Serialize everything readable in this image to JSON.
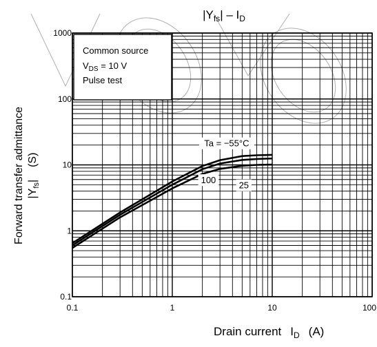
{
  "chart_data": {
    "type": "line",
    "title_parts": {
      "bar_left": "|",
      "y": "Y",
      "y_sub": "fs",
      "bar_right": "|",
      "dash": " – I",
      "i_sub": "D"
    },
    "xlabel_parts": {
      "text": "Drain current",
      "i": "I",
      "i_sub": "D",
      "unit": "(A)"
    },
    "ylabel_parts": {
      "line1": "Forward transfer admittance",
      "y": "Y",
      "y_sub": "fs",
      "unit": "(S)"
    },
    "x_scale": "log",
    "y_scale": "log",
    "xlim": [
      0.1,
      100
    ],
    "ylim": [
      0.1,
      1000
    ],
    "x_ticks": [
      {
        "value": 0.1,
        "label": "0.1"
      },
      {
        "value": 1,
        "label": "1"
      },
      {
        "value": 10,
        "label": "10"
      },
      {
        "value": 100,
        "label": "100"
      }
    ],
    "y_ticks": [
      {
        "value": 0.1,
        "label": "0.1"
      },
      {
        "value": 1,
        "label": "1"
      },
      {
        "value": 10,
        "label": "10"
      },
      {
        "value": 100,
        "label": "100"
      },
      {
        "value": 1000,
        "label": "1000"
      }
    ],
    "grid": true,
    "conditions": {
      "line1": "Common source",
      "line2_v": "V",
      "line2_sub": "DS",
      "line2_rest": " = 10 V",
      "line3": "Pulse test"
    },
    "series": [
      {
        "name": "Ta = −55°C",
        "x": [
          0.1,
          0.3,
          1,
          2,
          3,
          5,
          7,
          10
        ],
        "y": [
          0.65,
          1.9,
          5.6,
          9.6,
          11.8,
          13.6,
          14.0,
          14.2
        ]
      },
      {
        "name": "25",
        "x": [
          0.1,
          0.3,
          1,
          2,
          3,
          5,
          7,
          10
        ],
        "y": [
          0.6,
          1.75,
          5.0,
          8.6,
          10.5,
          11.9,
          12.3,
          12.5
        ]
      },
      {
        "name": "100",
        "x": [
          0.1,
          0.3,
          1,
          2,
          3,
          5,
          7,
          10
        ],
        "y": [
          0.55,
          1.6,
          4.4,
          7.3,
          8.7,
          9.7,
          10.0,
          10.1
        ]
      }
    ],
    "annotations": [
      {
        "text": "Ta = −55°C",
        "x": 3.5,
        "y": 19.5
      },
      {
        "text": "100",
        "x": 2.3,
        "y": 5.4
      },
      {
        "text": "25",
        "x": 5.2,
        "y": 4.5
      }
    ]
  }
}
